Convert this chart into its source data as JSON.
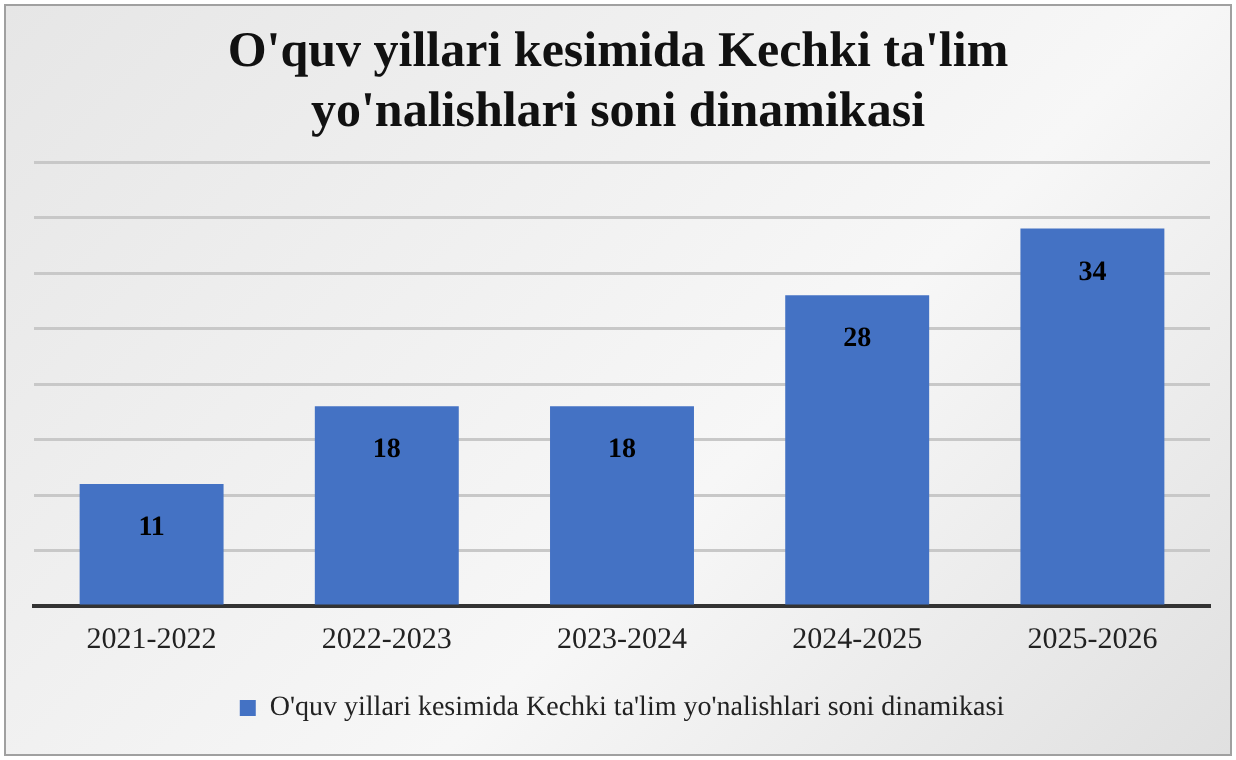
{
  "chart_data": {
    "type": "bar",
    "title": "O'quv yillari kesimida Kechki ta'lim yo'nalishlari soni dinamikasi",
    "categories": [
      "2021-2022",
      "2022-2023",
      "2023-2024",
      "2024-2025",
      "2025-2026"
    ],
    "series": [
      {
        "name": "O'quv yillari kesimida Kechki ta'lim yo'nalishlari soni dinamikasi",
        "color": "#4472c4",
        "values": [
          11,
          18,
          18,
          28,
          34
        ]
      }
    ],
    "ylim": [
      0,
      40
    ],
    "yticks": [
      {
        "value": 0,
        "label": null
      },
      {
        "value": 5,
        "label": null
      },
      {
        "value": 10,
        "label": null
      },
      {
        "value": 15,
        "label": null
      },
      {
        "value": 20,
        "label": null
      },
      {
        "value": 25,
        "label": null
      },
      {
        "value": 30,
        "label": null
      },
      {
        "value": 35,
        "label": null
      },
      {
        "value": 40,
        "label": null
      }
    ],
    "tick_labels": "x",
    "grid": "y",
    "legend": "bottom",
    "data_labels": true
  }
}
